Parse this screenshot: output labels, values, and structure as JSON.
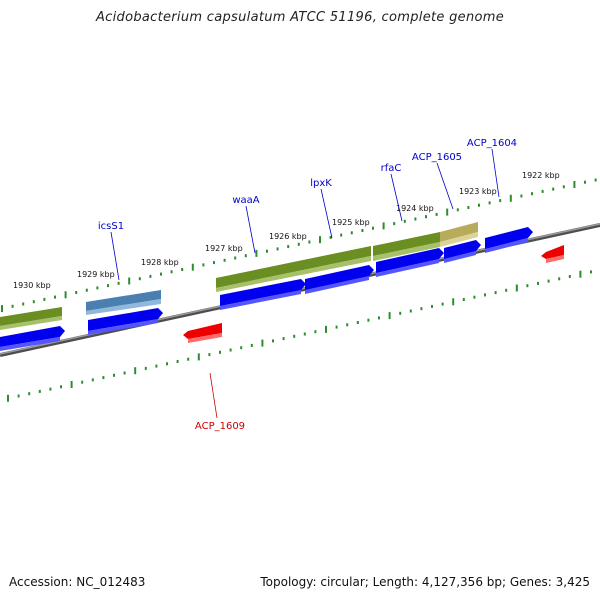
{
  "title": "Acidobacterium capsulatum ATCC 51196, complete genome",
  "accession": "Accession: NC_012483",
  "footer_info": "Topology: circular; Length: 4,127,356 bp; Genes: 3,425",
  "colors": {
    "backbone": "#808080",
    "tick": "#2e8b2e",
    "gene_blue": "#0000ee",
    "gene_red": "#ee0000",
    "gene_olive": "#6b8e23",
    "gene_steel": "#4682b4",
    "gene_khaki": "#c8bd6a",
    "label_blue": "#0000cc",
    "label_red": "#cc0000"
  },
  "kbp_labels": [
    "1930 kbp",
    "1929 kbp",
    "1928 kbp",
    "1927 kbp",
    "1926 kbp",
    "1925 kbp",
    "1924 kbp",
    "1923 kbp",
    "1922 kbp"
  ],
  "gene_labels": [
    "icsS1",
    "waaA",
    "lpxK",
    "rfaC",
    "ACP_1605",
    "ACP_1604",
    "ACP_1609"
  ]
}
